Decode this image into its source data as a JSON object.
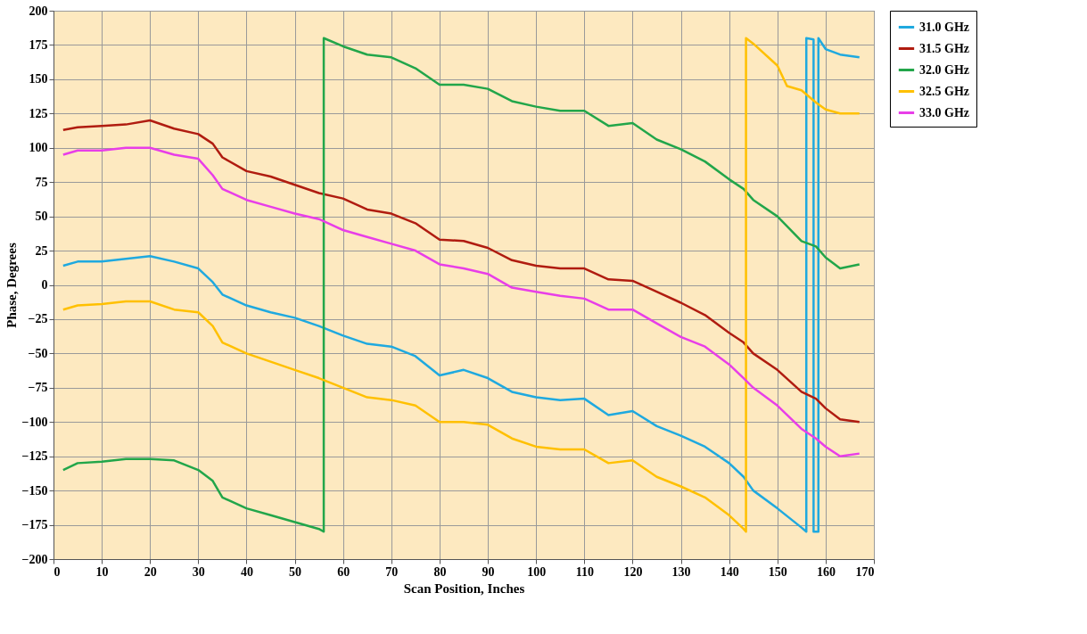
{
  "chart_data": {
    "type": "line",
    "xlabel": "Scan Position, Inches",
    "ylabel": "Phase, Degrees",
    "xlim": [
      0,
      170
    ],
    "xticks": [
      0,
      10,
      20,
      30,
      40,
      50,
      60,
      70,
      80,
      90,
      100,
      110,
      120,
      130,
      140,
      150,
      160,
      170
    ],
    "ylim": [
      -200,
      200
    ],
    "yticks": [
      -200,
      -175,
      -150,
      -125,
      -100,
      -75,
      -50,
      -25,
      0,
      25,
      50,
      75,
      100,
      125,
      150,
      175,
      200
    ],
    "grid": true,
    "legend": "top right",
    "marker": "none",
    "line_style": "solid",
    "series": [
      {
        "name": "31.0 GHz",
        "color": "#1fa9df",
        "x": [
          2,
          5,
          10,
          15,
          20,
          25,
          30,
          33,
          35,
          40,
          45,
          50,
          55,
          60,
          65,
          70,
          75,
          80,
          85,
          90,
          95,
          100,
          105,
          110,
          115,
          120,
          125,
          130,
          135,
          140,
          143,
          145,
          150,
          155,
          156,
          156,
          157.5,
          157.5,
          158.5,
          158.5,
          160,
          163,
          167
        ],
        "values": [
          14,
          17,
          17,
          19,
          21,
          17,
          12,
          2,
          -7,
          -15,
          -20,
          -24,
          -30,
          -37,
          -43,
          -45,
          -52,
          -66,
          -62,
          -68,
          -78,
          -82,
          -84,
          -83,
          -95,
          -92,
          -103,
          -110,
          -118,
          -130,
          -140,
          -150,
          -163,
          -177,
          -180,
          180,
          179,
          -180,
          -180,
          180,
          172,
          168,
          166
        ]
      },
      {
        "name": "31.5 GHz",
        "color": "#b01c10",
        "x": [
          2,
          5,
          10,
          15,
          20,
          25,
          30,
          33,
          35,
          40,
          45,
          50,
          55,
          60,
          65,
          70,
          75,
          80,
          85,
          90,
          95,
          100,
          105,
          110,
          115,
          120,
          125,
          130,
          135,
          140,
          143,
          145,
          150,
          155,
          158,
          160,
          163,
          167
        ],
        "values": [
          113,
          115,
          116,
          117,
          120,
          114,
          110,
          103,
          93,
          83,
          79,
          73,
          67,
          63,
          55,
          52,
          45,
          33,
          32,
          27,
          18,
          14,
          12,
          12,
          4,
          3,
          -5,
          -13,
          -22,
          -35,
          -42,
          -50,
          -62,
          -78,
          -83,
          -90,
          -98,
          -100
        ]
      },
      {
        "name": "32.0 GHz",
        "color": "#22a64a",
        "x": [
          2,
          5,
          10,
          15,
          20,
          25,
          30,
          33,
          35,
          40,
          45,
          50,
          55,
          56,
          56,
          60,
          65,
          70,
          75,
          80,
          85,
          90,
          95,
          100,
          105,
          110,
          115,
          120,
          125,
          130,
          135,
          140,
          143,
          145,
          150,
          155,
          158,
          160,
          163,
          167
        ],
        "values": [
          -135,
          -130,
          -129,
          -127,
          -127,
          -128,
          -135,
          -143,
          -155,
          -163,
          -168,
          -173,
          -178,
          -180,
          180,
          174,
          168,
          166,
          158,
          146,
          146,
          143,
          134,
          130,
          127,
          127,
          116,
          118,
          106,
          99,
          90,
          77,
          70,
          62,
          50,
          32,
          28,
          20,
          12,
          15
        ]
      },
      {
        "name": "32.5 GHz",
        "color": "#ffc000",
        "x": [
          2,
          5,
          10,
          15,
          20,
          25,
          30,
          33,
          35,
          40,
          45,
          50,
          55,
          60,
          65,
          70,
          75,
          80,
          85,
          90,
          95,
          100,
          105,
          110,
          115,
          120,
          125,
          130,
          135,
          140,
          143,
          143.5,
          143.5,
          145,
          150,
          152,
          155,
          158,
          160,
          163,
          167
        ],
        "values": [
          -18,
          -15,
          -14,
          -12,
          -12,
          -18,
          -20,
          -30,
          -42,
          -50,
          -56,
          -62,
          -68,
          -75,
          -82,
          -84,
          -88,
          -100,
          -100,
          -102,
          -112,
          -118,
          -120,
          -120,
          -130,
          -128,
          -140,
          -147,
          -155,
          -168,
          -178,
          -180,
          180,
          176,
          160,
          145,
          142,
          133,
          128,
          125,
          125
        ]
      },
      {
        "name": "33.0 GHz",
        "color": "#e83ee8",
        "x": [
          2,
          5,
          10,
          15,
          20,
          25,
          30,
          33,
          35,
          40,
          45,
          50,
          55,
          60,
          65,
          70,
          75,
          80,
          85,
          90,
          95,
          100,
          105,
          110,
          115,
          120,
          125,
          130,
          135,
          140,
          143,
          145,
          150,
          155,
          158,
          160,
          163,
          167
        ],
        "values": [
          95,
          98,
          98,
          100,
          100,
          95,
          92,
          80,
          70,
          62,
          57,
          52,
          48,
          40,
          35,
          30,
          25,
          15,
          12,
          8,
          -2,
          -5,
          -8,
          -10,
          -18,
          -18,
          -28,
          -38,
          -45,
          -58,
          -68,
          -75,
          -88,
          -105,
          -112,
          -118,
          -125,
          -123
        ]
      }
    ]
  }
}
